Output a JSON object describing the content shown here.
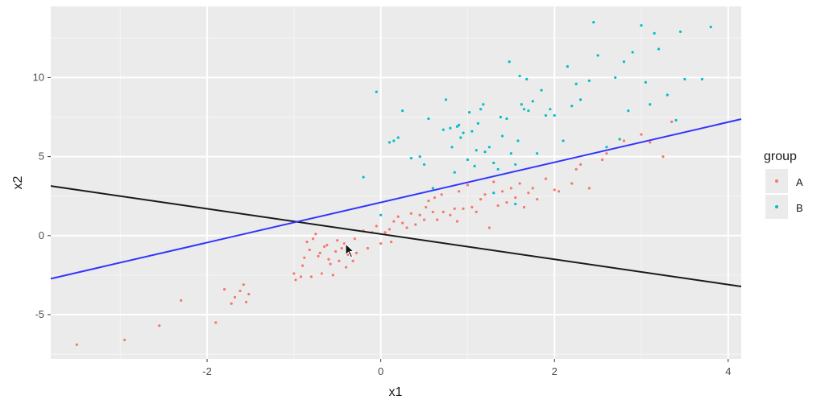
{
  "chart_data": {
    "type": "scatter",
    "xlabel": "x1",
    "ylabel": "x2",
    "xlim": [
      -3.8,
      4.15
    ],
    "ylim": [
      -7.8,
      14.5
    ],
    "x_ticks": [
      -2,
      0,
      2,
      4
    ],
    "x_tick_labels": [
      "-2",
      "0",
      "2",
      "4"
    ],
    "y_ticks": [
      -5,
      0,
      5,
      10
    ],
    "y_tick_labels": [
      "-5",
      "0",
      "5",
      "10"
    ],
    "grid": true,
    "legend": {
      "title": "group",
      "position": "right"
    },
    "series": [
      {
        "name": "A",
        "color": "#F8766D",
        "points": [
          [
            -3.5,
            -6.9
          ],
          [
            -2.95,
            -6.6
          ],
          [
            -2.55,
            -5.7
          ],
          [
            -2.3,
            -4.1
          ],
          [
            -1.9,
            -5.5
          ],
          [
            -1.8,
            -3.4
          ],
          [
            -1.72,
            -4.3
          ],
          [
            -1.68,
            -3.9
          ],
          [
            -1.62,
            -3.5
          ],
          [
            -1.58,
            -3.1
          ],
          [
            -1.55,
            -4.2
          ],
          [
            -1.52,
            -3.7
          ],
          [
            -1.0,
            -2.4
          ],
          [
            -0.98,
            -2.8
          ],
          [
            -0.92,
            -2.6
          ],
          [
            -0.9,
            -1.9
          ],
          [
            -0.88,
            -1.4
          ],
          [
            -0.85,
            -0.4
          ],
          [
            -0.82,
            -0.9
          ],
          [
            -0.8,
            -2.6
          ],
          [
            -0.78,
            -0.2
          ],
          [
            -0.75,
            0.1
          ],
          [
            -0.72,
            -1.3
          ],
          [
            -0.7,
            -1.1
          ],
          [
            -0.68,
            -2.4
          ],
          [
            -0.65,
            -0.7
          ],
          [
            -0.62,
            -0.6
          ],
          [
            -0.6,
            -1.5
          ],
          [
            -0.58,
            -1.8
          ],
          [
            -0.55,
            -2.5
          ],
          [
            -0.52,
            -1.0
          ],
          [
            -0.5,
            -0.3
          ],
          [
            -0.48,
            -1.6
          ],
          [
            -0.45,
            -0.8
          ],
          [
            -0.42,
            -0.5
          ],
          [
            -0.4,
            -2.0
          ],
          [
            -0.38,
            -1.2
          ],
          [
            -0.35,
            -0.9
          ],
          [
            -0.32,
            -1.6
          ],
          [
            -0.3,
            -0.2
          ],
          [
            -0.28,
            -1.1
          ],
          [
            -0.2,
            0.3
          ],
          [
            -0.15,
            -0.8
          ],
          [
            -0.1,
            0.2
          ],
          [
            -0.05,
            0.6
          ],
          [
            0.0,
            -0.5
          ],
          [
            0.05,
            0.2
          ],
          [
            0.1,
            0.4
          ],
          [
            0.12,
            -0.4
          ],
          [
            0.15,
            0.9
          ],
          [
            0.2,
            1.2
          ],
          [
            0.25,
            0.8
          ],
          [
            0.3,
            0.5
          ],
          [
            0.35,
            1.4
          ],
          [
            0.4,
            0.7
          ],
          [
            0.45,
            1.3
          ],
          [
            0.5,
            1.0
          ],
          [
            0.52,
            1.8
          ],
          [
            0.55,
            2.2
          ],
          [
            0.6,
            1.5
          ],
          [
            0.62,
            2.4
          ],
          [
            0.65,
            1.0
          ],
          [
            0.7,
            2.6
          ],
          [
            0.72,
            1.5
          ],
          [
            0.8,
            1.3
          ],
          [
            0.85,
            1.7
          ],
          [
            0.88,
            0.9
          ],
          [
            0.9,
            2.8
          ],
          [
            0.95,
            1.7
          ],
          [
            1.0,
            3.2
          ],
          [
            1.05,
            1.8
          ],
          [
            1.1,
            1.5
          ],
          [
            1.15,
            2.3
          ],
          [
            1.2,
            2.6
          ],
          [
            1.25,
            0.5
          ],
          [
            1.3,
            3.4
          ],
          [
            1.35,
            1.9
          ],
          [
            1.4,
            2.8
          ],
          [
            1.45,
            2.1
          ],
          [
            1.5,
            3.0
          ],
          [
            1.55,
            2.4
          ],
          [
            1.6,
            3.3
          ],
          [
            1.65,
            1.8
          ],
          [
            1.7,
            2.7
          ],
          [
            1.75,
            3.0
          ],
          [
            1.8,
            2.3
          ],
          [
            1.9,
            3.6
          ],
          [
            2.0,
            2.9
          ],
          [
            2.05,
            2.8
          ],
          [
            2.2,
            3.3
          ],
          [
            2.25,
            4.2
          ],
          [
            2.3,
            4.5
          ],
          [
            2.4,
            3.0
          ],
          [
            2.55,
            4.8
          ],
          [
            2.6,
            5.2
          ],
          [
            2.8,
            6.0
          ],
          [
            3.0,
            6.4
          ],
          [
            3.1,
            5.9
          ],
          [
            3.25,
            5.0
          ],
          [
            3.35,
            7.2
          ]
        ]
      },
      {
        "name": "B",
        "color": "#00BFC4",
        "points": [
          [
            -0.2,
            3.7
          ],
          [
            0.0,
            1.3
          ],
          [
            -0.05,
            9.1
          ],
          [
            0.1,
            5.9
          ],
          [
            0.15,
            6.0
          ],
          [
            0.2,
            6.2
          ],
          [
            0.25,
            7.9
          ],
          [
            0.35,
            4.9
          ],
          [
            0.45,
            5.0
          ],
          [
            0.5,
            4.5
          ],
          [
            0.55,
            7.4
          ],
          [
            0.6,
            3.0
          ],
          [
            0.72,
            6.7
          ],
          [
            0.75,
            8.6
          ],
          [
            0.8,
            6.8
          ],
          [
            0.82,
            5.6
          ],
          [
            0.85,
            4.0
          ],
          [
            0.88,
            6.9
          ],
          [
            0.9,
            7.0
          ],
          [
            0.92,
            6.2
          ],
          [
            0.95,
            6.5
          ],
          [
            1.0,
            4.8
          ],
          [
            1.02,
            7.8
          ],
          [
            1.05,
            6.6
          ],
          [
            1.08,
            4.4
          ],
          [
            1.1,
            5.4
          ],
          [
            1.12,
            7.1
          ],
          [
            1.15,
            8.0
          ],
          [
            1.18,
            8.3
          ],
          [
            1.2,
            5.3
          ],
          [
            1.25,
            5.6
          ],
          [
            1.3,
            4.6
          ],
          [
            1.35,
            4.2
          ],
          [
            1.38,
            7.5
          ],
          [
            1.4,
            6.3
          ],
          [
            1.45,
            7.4
          ],
          [
            1.48,
            11.0
          ],
          [
            1.5,
            5.2
          ],
          [
            1.55,
            4.5
          ],
          [
            1.58,
            6.0
          ],
          [
            1.6,
            10.1
          ],
          [
            1.62,
            8.3
          ],
          [
            1.65,
            8.0
          ],
          [
            1.68,
            9.9
          ],
          [
            1.7,
            7.9
          ],
          [
            1.75,
            8.5
          ],
          [
            1.8,
            5.2
          ],
          [
            1.85,
            9.2
          ],
          [
            1.9,
            7.6
          ],
          [
            1.95,
            8.0
          ],
          [
            2.0,
            7.6
          ],
          [
            2.1,
            6.0
          ],
          [
            2.15,
            10.7
          ],
          [
            2.2,
            8.2
          ],
          [
            2.25,
            9.6
          ],
          [
            2.3,
            8.6
          ],
          [
            2.4,
            9.8
          ],
          [
            2.45,
            13.5
          ],
          [
            2.5,
            11.4
          ],
          [
            2.6,
            5.6
          ],
          [
            2.7,
            10.0
          ],
          [
            2.75,
            6.1
          ],
          [
            2.8,
            11.0
          ],
          [
            2.85,
            7.9
          ],
          [
            2.9,
            11.6
          ],
          [
            3.0,
            13.3
          ],
          [
            3.05,
            9.7
          ],
          [
            3.1,
            8.3
          ],
          [
            3.15,
            12.8
          ],
          [
            3.2,
            11.8
          ],
          [
            3.3,
            8.9
          ],
          [
            3.4,
            7.3
          ],
          [
            3.45,
            12.9
          ],
          [
            3.5,
            9.9
          ],
          [
            3.7,
            9.9
          ],
          [
            3.8,
            13.2
          ],
          [
            1.55,
            2.0
          ],
          [
            1.3,
            2.7
          ]
        ]
      }
    ],
    "lines": [
      {
        "color": "#1a1a1a",
        "intercept": 0.1,
        "slope": -0.8
      },
      {
        "color": "#3333ff",
        "intercept": 2.1,
        "slope": 1.27
      }
    ]
  }
}
